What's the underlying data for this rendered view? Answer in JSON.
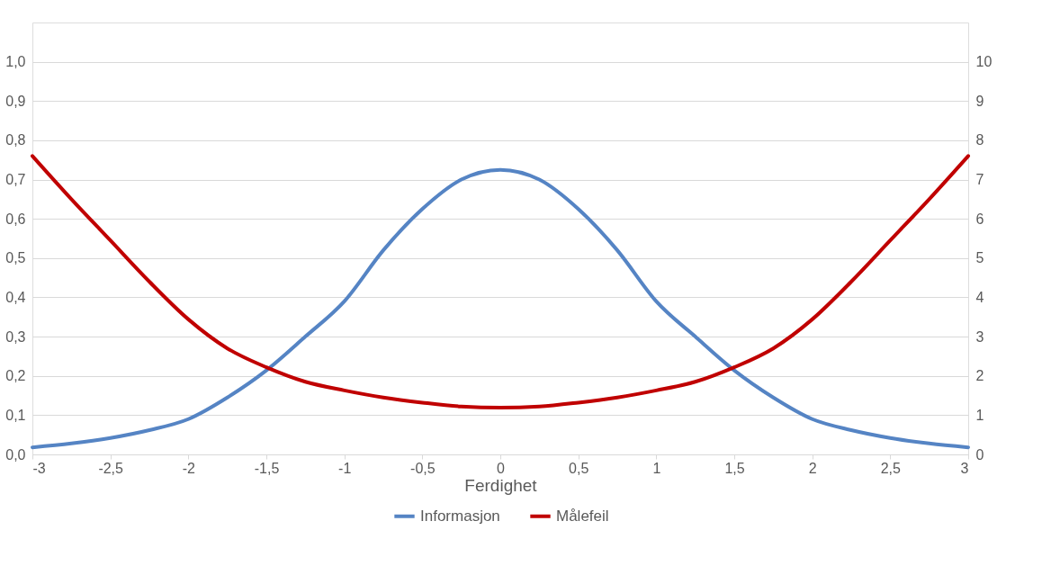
{
  "chart_data": {
    "type": "line",
    "xlabel": "Ferdighet",
    "x": [
      -3,
      -2.75,
      -2.5,
      -2.25,
      -2,
      -1.75,
      -1.5,
      -1.25,
      -1,
      -0.75,
      -0.5,
      -0.25,
      0,
      0.25,
      0.5,
      0.75,
      1,
      1.25,
      1.5,
      1.75,
      2,
      2.25,
      2.5,
      2.75,
      3
    ],
    "series": [
      {
        "name": "Informasjon",
        "color": "#5584c4",
        "values": [
          0.018,
          0.028,
          0.042,
          0.062,
          0.09,
          0.145,
          0.214,
          0.3,
          0.39,
          0.52,
          0.625,
          0.7,
          0.725,
          0.7,
          0.625,
          0.52,
          0.39,
          0.3,
          0.214,
          0.145,
          0.09,
          0.062,
          0.042,
          0.028,
          0.018
        ]
      },
      {
        "name": "Målefeil",
        "color": "#c00000",
        "axis": "y2",
        "values": [
          7.6,
          6.5,
          5.45,
          4.4,
          3.44,
          2.7,
          2.22,
          1.85,
          1.63,
          1.45,
          1.32,
          1.22,
          1.19,
          1.22,
          1.32,
          1.45,
          1.63,
          1.85,
          2.22,
          2.7,
          3.44,
          4.4,
          5.45,
          6.5,
          7.6
        ]
      }
    ],
    "xlim": [
      -3,
      3
    ],
    "xticks": [
      -3,
      {
        "value": -2.5,
        "label": "-2,5"
      },
      -2,
      {
        "value": -1.5,
        "label": "-1,5"
      },
      -1,
      {
        "value": -0.5,
        "label": "-0,5"
      },
      0,
      {
        "value": 0.5,
        "label": "0,5"
      },
      1,
      {
        "value": 1.5,
        "label": "1,5"
      },
      2,
      {
        "value": 2.5,
        "label": "2,5"
      },
      3
    ],
    "ylim": [
      0,
      1.1
    ],
    "yticks": [
      {
        "value": 0,
        "label": "0,0"
      },
      {
        "value": 0.1,
        "label": "0,1"
      },
      {
        "value": 0.2,
        "label": "0,2"
      },
      {
        "value": 0.3,
        "label": "0,3"
      },
      {
        "value": 0.4,
        "label": "0,4"
      },
      {
        "value": 0.5,
        "label": "0,5"
      },
      {
        "value": 0.6,
        "label": "0,6"
      },
      {
        "value": 0.7,
        "label": "0,7"
      },
      {
        "value": 0.8,
        "label": "0,8"
      },
      {
        "value": 0.9,
        "label": "0,9"
      },
      {
        "value": 1.0,
        "label": "1,0"
      }
    ],
    "y2lim": [
      0,
      11
    ],
    "y2ticks": [
      0,
      1,
      2,
      3,
      4,
      5,
      6,
      7,
      8,
      9,
      10
    ],
    "grid": "y",
    "legend": "bottom",
    "marker": "none",
    "line_style": "solid"
  }
}
